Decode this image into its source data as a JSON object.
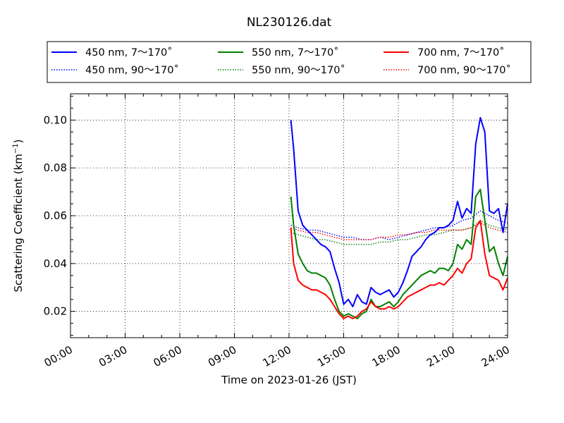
{
  "chart_data": {
    "type": "line",
    "title": "NL230126.dat",
    "xlabel": "Time on 2023-01-26 (JST)",
    "ylabel_main": "Scattering Coefficient (km",
    "ylabel_sup": "−1",
    "ylabel_close": ")",
    "xlim": [
      0,
      24
    ],
    "ylim": [
      0.009,
      0.111
    ],
    "xticks": [
      {
        "value": 0,
        "label": "00:00"
      },
      {
        "value": 3,
        "label": "03:00"
      },
      {
        "value": 6,
        "label": "06:00"
      },
      {
        "value": 9,
        "label": "09:00"
      },
      {
        "value": 12,
        "label": "12:00"
      },
      {
        "value": 15,
        "label": "15:00"
      },
      {
        "value": 18,
        "label": "18:00"
      },
      {
        "value": 21,
        "label": "21:00"
      },
      {
        "value": 24,
        "label": "24:00"
      }
    ],
    "yticks": [
      {
        "value": 0.02,
        "label": "0.02"
      },
      {
        "value": 0.04,
        "label": "0.04"
      },
      {
        "value": 0.06,
        "label": "0.06"
      },
      {
        "value": 0.08,
        "label": "0.08"
      },
      {
        "value": 0.1,
        "label": "0.10"
      }
    ],
    "grid": true,
    "legend_position": "top, outside plot area",
    "series": [
      {
        "name": "450 nm, 7～170˚",
        "color": "#0000ff",
        "style": "solid",
        "x": [
          12.1,
          12.25,
          12.5,
          12.75,
          13.0,
          13.25,
          13.5,
          13.75,
          14.0,
          14.25,
          14.5,
          14.75,
          15.0,
          15.25,
          15.5,
          15.75,
          16.0,
          16.25,
          16.5,
          16.75,
          17.0,
          17.25,
          17.5,
          17.75,
          18.0,
          18.25,
          18.5,
          18.75,
          19.0,
          19.25,
          19.5,
          19.75,
          20.0,
          20.25,
          20.5,
          20.75,
          21.0,
          21.25,
          21.5,
          21.75,
          22.0,
          22.25,
          22.5,
          22.75,
          23.0,
          23.25,
          23.5,
          23.75,
          24.0
        ],
        "y": [
          0.1,
          0.088,
          0.062,
          0.056,
          0.054,
          0.052,
          0.05,
          0.048,
          0.047,
          0.045,
          0.038,
          0.032,
          0.023,
          0.025,
          0.022,
          0.027,
          0.024,
          0.023,
          0.03,
          0.028,
          0.027,
          0.028,
          0.029,
          0.026,
          0.028,
          0.032,
          0.037,
          0.043,
          0.045,
          0.047,
          0.05,
          0.052,
          0.053,
          0.055,
          0.055,
          0.056,
          0.058,
          0.066,
          0.059,
          0.063,
          0.061,
          0.09,
          0.101,
          0.095,
          0.062,
          0.061,
          0.063,
          0.053,
          0.065
        ]
      },
      {
        "name": "450 nm, 90～170˚",
        "color": "#0000ff",
        "style": "dotted",
        "x": [
          12.1,
          12.5,
          13.0,
          13.5,
          14.0,
          14.5,
          15.0,
          15.5,
          16.0,
          16.5,
          17.0,
          17.5,
          18.0,
          18.5,
          19.0,
          19.5,
          20.0,
          20.5,
          21.0,
          21.5,
          22.0,
          22.5,
          23.0,
          23.5,
          24.0
        ],
        "y": [
          0.056,
          0.055,
          0.054,
          0.054,
          0.053,
          0.052,
          0.051,
          0.051,
          0.05,
          0.05,
          0.051,
          0.05,
          0.051,
          0.052,
          0.053,
          0.054,
          0.055,
          0.055,
          0.056,
          0.058,
          0.059,
          0.062,
          0.06,
          0.058,
          0.057
        ]
      },
      {
        "name": "550 nm, 7～170˚",
        "color": "#008000",
        "style": "solid",
        "x": [
          12.1,
          12.25,
          12.5,
          12.75,
          13.0,
          13.25,
          13.5,
          13.75,
          14.0,
          14.25,
          14.5,
          14.75,
          15.0,
          15.25,
          15.5,
          15.75,
          16.0,
          16.25,
          16.5,
          16.75,
          17.0,
          17.25,
          17.5,
          17.75,
          18.0,
          18.25,
          18.5,
          18.75,
          19.0,
          19.25,
          19.5,
          19.75,
          20.0,
          20.25,
          20.5,
          20.75,
          21.0,
          21.25,
          21.5,
          21.75,
          22.0,
          22.25,
          22.5,
          22.75,
          23.0,
          23.25,
          23.5,
          23.75,
          24.0
        ],
        "y": [
          0.068,
          0.056,
          0.044,
          0.04,
          0.037,
          0.036,
          0.036,
          0.035,
          0.034,
          0.031,
          0.025,
          0.02,
          0.018,
          0.019,
          0.018,
          0.017,
          0.019,
          0.02,
          0.025,
          0.022,
          0.022,
          0.023,
          0.024,
          0.022,
          0.024,
          0.027,
          0.029,
          0.031,
          0.033,
          0.035,
          0.036,
          0.037,
          0.036,
          0.038,
          0.038,
          0.037,
          0.04,
          0.048,
          0.046,
          0.05,
          0.048,
          0.068,
          0.071,
          0.058,
          0.045,
          0.047,
          0.04,
          0.035,
          0.043
        ]
      },
      {
        "name": "550 nm, 90～170˚",
        "color": "#008000",
        "style": "dotted",
        "x": [
          12.1,
          12.5,
          13.0,
          13.5,
          14.0,
          14.5,
          15.0,
          15.5,
          16.0,
          16.5,
          17.0,
          17.5,
          18.0,
          18.5,
          19.0,
          19.5,
          20.0,
          20.5,
          21.0,
          21.5,
          22.0,
          22.5,
          23.0,
          23.5,
          24.0
        ],
        "y": [
          0.053,
          0.052,
          0.051,
          0.05,
          0.05,
          0.049,
          0.048,
          0.048,
          0.048,
          0.048,
          0.049,
          0.049,
          0.05,
          0.05,
          0.051,
          0.052,
          0.052,
          0.053,
          0.054,
          0.054,
          0.055,
          0.058,
          0.056,
          0.055,
          0.054
        ]
      },
      {
        "name": "700 nm, 7～170˚",
        "color": "#ff0000",
        "style": "solid",
        "x": [
          12.1,
          12.25,
          12.5,
          12.75,
          13.0,
          13.25,
          13.5,
          13.75,
          14.0,
          14.25,
          14.5,
          14.75,
          15.0,
          15.25,
          15.5,
          15.75,
          16.0,
          16.25,
          16.5,
          16.75,
          17.0,
          17.25,
          17.5,
          17.75,
          18.0,
          18.25,
          18.5,
          18.75,
          19.0,
          19.25,
          19.5,
          19.75,
          20.0,
          20.25,
          20.5,
          20.75,
          21.0,
          21.25,
          21.5,
          21.75,
          22.0,
          22.25,
          22.5,
          22.75,
          23.0,
          23.25,
          23.5,
          23.75,
          24.0
        ],
        "y": [
          0.055,
          0.04,
          0.033,
          0.031,
          0.03,
          0.029,
          0.029,
          0.028,
          0.027,
          0.025,
          0.022,
          0.019,
          0.017,
          0.018,
          0.017,
          0.018,
          0.02,
          0.021,
          0.024,
          0.022,
          0.021,
          0.021,
          0.022,
          0.021,
          0.022,
          0.024,
          0.026,
          0.027,
          0.028,
          0.029,
          0.03,
          0.031,
          0.031,
          0.032,
          0.031,
          0.033,
          0.035,
          0.038,
          0.036,
          0.04,
          0.042,
          0.055,
          0.058,
          0.044,
          0.035,
          0.034,
          0.033,
          0.029,
          0.034
        ]
      },
      {
        "name": "700 nm, 90～170˚",
        "color": "#ff0000",
        "style": "dotted",
        "x": [
          12.1,
          12.5,
          13.0,
          13.5,
          14.0,
          14.5,
          15.0,
          15.5,
          16.0,
          16.5,
          17.0,
          17.5,
          18.0,
          18.5,
          19.0,
          19.5,
          20.0,
          20.5,
          21.0,
          21.5,
          22.0,
          22.5,
          23.0,
          23.5,
          24.0
        ],
        "y": [
          0.055,
          0.054,
          0.053,
          0.053,
          0.052,
          0.051,
          0.05,
          0.05,
          0.05,
          0.05,
          0.051,
          0.051,
          0.052,
          0.052,
          0.053,
          0.053,
          0.054,
          0.054,
          0.054,
          0.054,
          0.055,
          0.057,
          0.055,
          0.054,
          0.053
        ]
      }
    ]
  }
}
